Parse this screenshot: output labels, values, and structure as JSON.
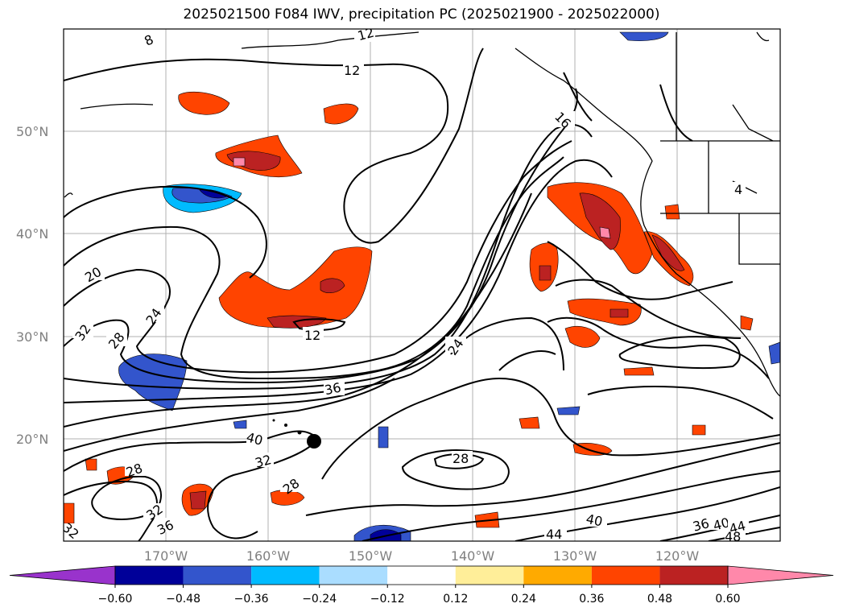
{
  "title": "2025021500 F084 IWV, precipitation PC (2025021900 - 2025022000)",
  "map": {
    "lat_labels": [
      {
        "text": "50°N",
        "lat": 50
      },
      {
        "text": "40°N",
        "lat": 40
      },
      {
        "text": "30°N",
        "lat": 30
      },
      {
        "text": "20°N",
        "lat": 20
      }
    ],
    "lon_labels": [
      {
        "text": "170°W",
        "lon": -170
      },
      {
        "text": "160°W",
        "lon": -160
      },
      {
        "text": "150°W",
        "lon": -150
      },
      {
        "text": "140°W",
        "lon": -140
      },
      {
        "text": "130°W",
        "lon": -130
      },
      {
        "text": "120°W",
        "lon": -120
      }
    ],
    "contour_labels": [
      "8",
      "12",
      "12",
      "16",
      "20",
      "24",
      "28",
      "32",
      "24",
      "36",
      "40",
      "32",
      "28",
      "28",
      "28",
      "32",
      "32",
      "36",
      "44",
      "40",
      "36",
      "40",
      "44",
      "48",
      "4",
      "12"
    ]
  },
  "colorbar": {
    "ticks": [
      "−0.60",
      "−0.48",
      "−0.36",
      "−0.24",
      "−0.12",
      "0.12",
      "0.24",
      "0.36",
      "0.48",
      "0.60"
    ],
    "colors": [
      "#9933cc",
      "#000099",
      "#3355cc",
      "#00bbff",
      "#aaddff",
      "#ffffff",
      "#ffee99",
      "#ffaa00",
      "#ff4400",
      "#bb2222",
      "#ff88aa"
    ]
  },
  "palette": {
    "deep_blue": "#000099",
    "blue": "#3355cc",
    "cyan": "#00bbff",
    "yellow": "#ffee99",
    "orange": "#ffaa00",
    "red_orange": "#ff4400",
    "dark_red": "#bb2222",
    "pink": "#ff88aa"
  }
}
